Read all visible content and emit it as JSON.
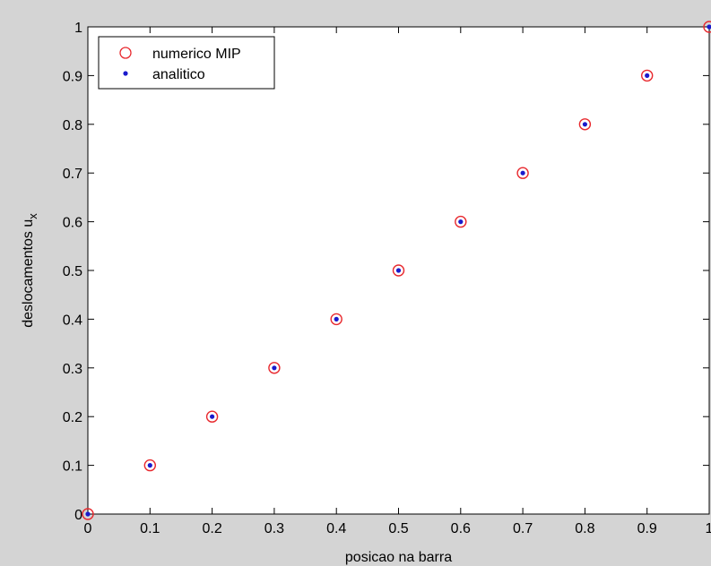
{
  "chart_data": {
    "type": "scatter",
    "title": "",
    "xlabel": "posicao na barra",
    "ylabel": "deslocamentos u",
    "ylabel_subscript": "x",
    "xlim": [
      0,
      1
    ],
    "ylim": [
      0,
      1
    ],
    "xticks": [
      "0",
      "0.1",
      "0.2",
      "0.3",
      "0.4",
      "0.5",
      "0.6",
      "0.7",
      "0.8",
      "0.9",
      "1"
    ],
    "yticks": [
      "0",
      "0.1",
      "0.2",
      "0.3",
      "0.4",
      "0.5",
      "0.6",
      "0.7",
      "0.8",
      "0.9",
      "1"
    ],
    "grid": false,
    "legend_position": "top-left",
    "series": [
      {
        "name": "numerico MIP",
        "marker": "open-circle",
        "color": "#e8282d",
        "x": [
          0,
          0.1,
          0.2,
          0.3,
          0.4,
          0.5,
          0.6,
          0.7,
          0.8,
          0.9,
          1.0
        ],
        "y": [
          0,
          0.1,
          0.2,
          0.3,
          0.4,
          0.5,
          0.6,
          0.7,
          0.8,
          0.9,
          1.0
        ]
      },
      {
        "name": "analitico",
        "marker": "dot",
        "color": "#1a1acc",
        "x": [
          0,
          0.1,
          0.2,
          0.3,
          0.4,
          0.5,
          0.6,
          0.7,
          0.8,
          0.9,
          1.0
        ],
        "y": [
          0,
          0.1,
          0.2,
          0.3,
          0.4,
          0.5,
          0.6,
          0.7,
          0.8,
          0.9,
          1.0
        ]
      }
    ]
  }
}
